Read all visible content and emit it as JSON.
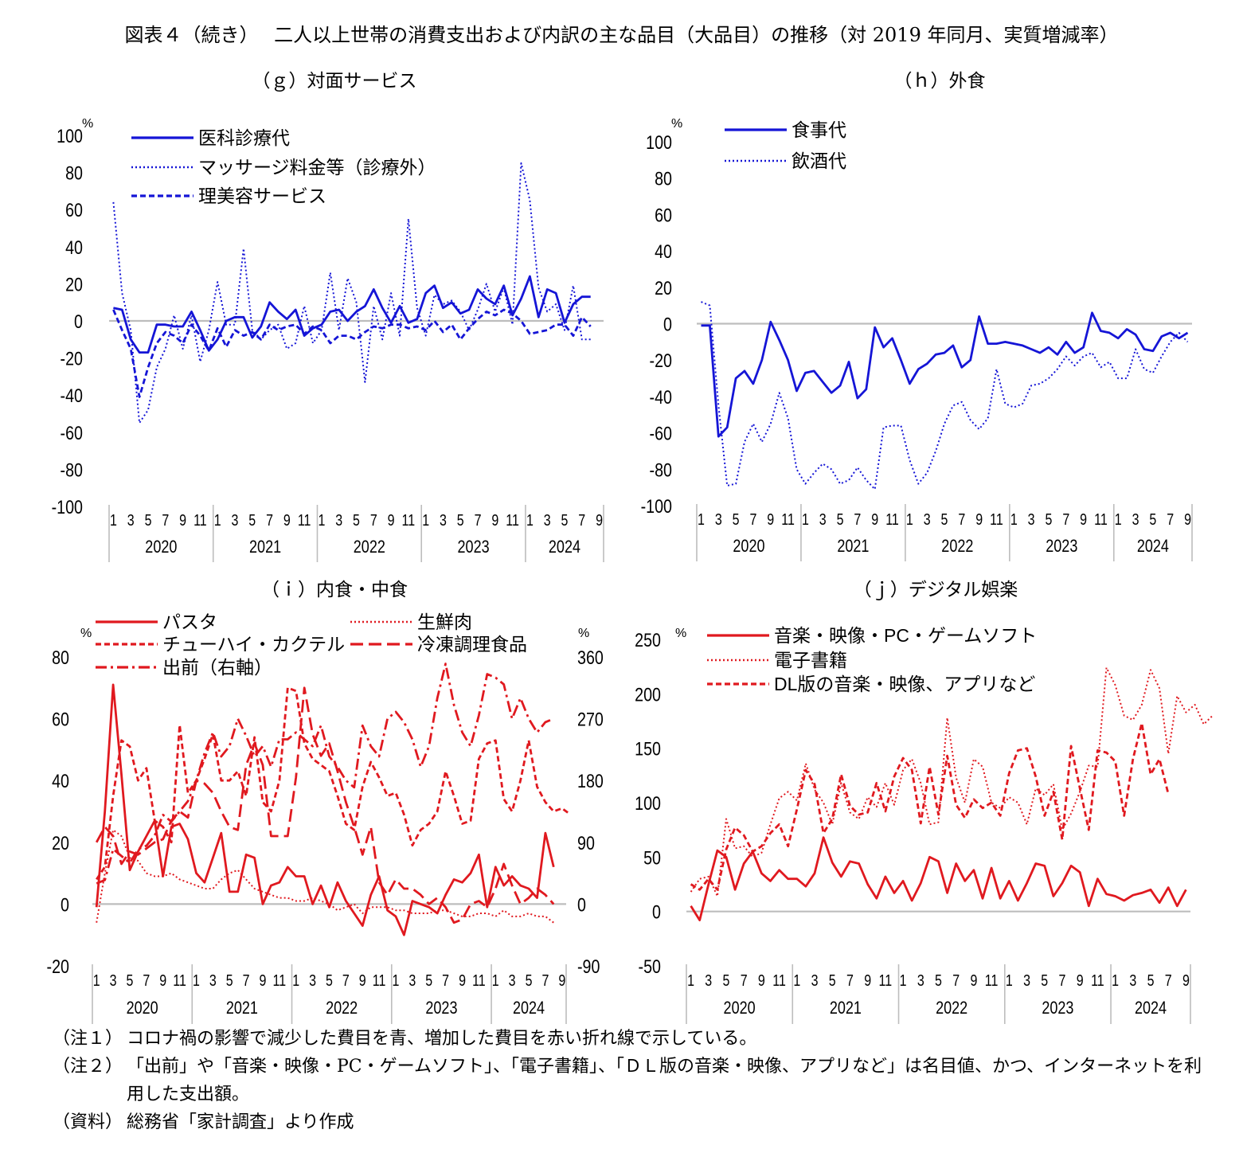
{
  "figure_title": "図表４（続き）　 二人以上世帯の消費支出および内訳の主な品目（大品目）の推移（対 2019 年同月、実質増減率）",
  "notes": [
    {
      "label": "（注１）",
      "text": "コロナ禍の影響で減少した費目を青、増加した費目を赤い折れ線で示している。"
    },
    {
      "label": "（注２）",
      "text": "「出前」や「音楽・映像・PC・ゲームソフト」、「電子書籍」、「ＤＬ版の音楽・映像、アプリなど」は名目値、かつ、インターネットを利用した支出額。"
    },
    {
      "label": "（資料）",
      "text": "総務省「家計調査」より作成"
    }
  ],
  "colors": {
    "blue": "#1515d6",
    "red": "#e0191f",
    "axis": "#bdbdbd"
  },
  "chart_data": [
    {
      "id": "g",
      "type": "line",
      "title": "（ｇ）対面サービス",
      "unit": "%",
      "ylim": [
        -100,
        100
      ],
      "y_ticks": [
        100,
        80,
        60,
        40,
        20,
        0,
        -20,
        -40,
        -60,
        -80,
        -100
      ],
      "x_tick_labels": [
        "1",
        "3",
        "5",
        "7",
        "9",
        "11",
        "1",
        "3",
        "5",
        "7",
        "9",
        "11",
        "1",
        "3",
        "5",
        "7",
        "9",
        "11",
        "1",
        "3",
        "5",
        "7",
        "9",
        "11",
        "1",
        "3",
        "5",
        "7",
        "9"
      ],
      "years": [
        "2020",
        "2021",
        "2022",
        "2023",
        "2024"
      ],
      "legend_placement": "top-left",
      "series": [
        {
          "name": "医科診療代",
          "color": "#1515d6",
          "dash": "solid",
          "values": [
            7,
            6,
            -10,
            -17,
            -17,
            -2,
            -2,
            -3,
            -3,
            5,
            -5,
            -16,
            -10,
            0,
            2,
            2,
            -9,
            -3,
            10,
            5,
            1,
            6,
            -8,
            -4,
            -2,
            5,
            6,
            0,
            5,
            8,
            17,
            7,
            -1,
            8,
            -1,
            1,
            15,
            19,
            7,
            10,
            4,
            6,
            17,
            12,
            9,
            19,
            3,
            12,
            24,
            2,
            17,
            15,
            -1,
            9,
            13,
            13
          ]
        },
        {
          "name": "マッサージ料金等（診療外）",
          "color": "#1515d6",
          "dash": "dotted",
          "values": [
            64,
            15,
            -5,
            -55,
            -48,
            -25,
            -15,
            3,
            -15,
            3,
            -22,
            -5,
            21,
            -2,
            -2,
            39,
            -5,
            -10,
            -5,
            -2,
            -15,
            -12,
            8,
            -12,
            -5,
            26,
            -5,
            23,
            10,
            -33,
            8,
            -10,
            15,
            -8,
            55,
            7,
            -8,
            14,
            9,
            11,
            5,
            -5,
            6,
            20,
            5,
            18,
            -2,
            85,
            65,
            18,
            5,
            9,
            -5,
            19,
            -10,
            -10
          ]
        },
        {
          "name": "理美容サービス",
          "color": "#1515d6",
          "dash": "dashed",
          "values": [
            6,
            -5,
            -15,
            -41,
            -25,
            -12,
            -6,
            -8,
            -12,
            -2,
            -8,
            -16,
            -4,
            -14,
            -5,
            -8,
            -6,
            -10,
            -2,
            -5,
            -3,
            -2,
            -7,
            -3,
            -5,
            -12,
            -8,
            -8,
            -10,
            -6,
            -3,
            -4,
            -2,
            -2,
            -4,
            -3,
            -5,
            0,
            -6,
            -2,
            -10,
            -4,
            1,
            5,
            3,
            6,
            4,
            0,
            -7,
            -6,
            -5,
            -2,
            -2,
            -8,
            2,
            -3
          ]
        }
      ]
    },
    {
      "id": "h",
      "type": "line",
      "title": "（ｈ）外食",
      "unit": "%",
      "ylim": [
        -100,
        100
      ],
      "y_ticks": [
        100,
        80,
        60,
        40,
        20,
        0,
        -20,
        -40,
        -60,
        -80,
        -100
      ],
      "x_tick_labels": [
        "1",
        "3",
        "5",
        "7",
        "9",
        "11",
        "1",
        "3",
        "5",
        "7",
        "9",
        "11",
        "1",
        "3",
        "5",
        "7",
        "9",
        "11",
        "1",
        "3",
        "5",
        "7",
        "9",
        "11",
        "1",
        "3",
        "5",
        "7",
        "9"
      ],
      "years": [
        "2020",
        "2021",
        "2022",
        "2023",
        "2024"
      ],
      "legend_placement": "top-left",
      "series": [
        {
          "name": "食事代",
          "color": "#1515d6",
          "dash": "solid",
          "values": [
            -1,
            -1,
            -62,
            -57,
            -30,
            -26,
            -33,
            -20,
            1,
            -9,
            -20,
            -37,
            -27,
            -26,
            -32,
            -38,
            -34,
            -21,
            -41,
            -36,
            -2,
            -13,
            -8,
            -20,
            -33,
            -25,
            -22,
            -17,
            -16,
            -12,
            -24,
            -20,
            4,
            -11,
            -11,
            -10,
            -11,
            -12,
            -14,
            -16,
            -13,
            -17,
            -10,
            -16,
            -13,
            6,
            -4,
            -5,
            -8,
            -3,
            -6,
            -14,
            -15,
            -7,
            -5,
            -8,
            -5
          ]
        },
        {
          "name": "飲酒代",
          "color": "#1515d6",
          "dash": "dotted",
          "values": [
            12,
            10,
            -45,
            -89,
            -88,
            -65,
            -55,
            -65,
            -55,
            -38,
            -52,
            -80,
            -88,
            -82,
            -77,
            -80,
            -88,
            -86,
            -79,
            -86,
            -91,
            -57,
            -56,
            -56,
            -75,
            -88,
            -82,
            -70,
            -55,
            -45,
            -43,
            -53,
            -58,
            -52,
            -25,
            -44,
            -46,
            -44,
            -34,
            -33,
            -30,
            -25,
            -18,
            -23,
            -18,
            -16,
            -24,
            -21,
            -30,
            -30,
            -14,
            -25,
            -27,
            -18,
            -10,
            -5,
            -10
          ]
        }
      ]
    },
    {
      "id": "i",
      "type": "line",
      "title": "（ｉ）内食・中食",
      "unit": "%",
      "ylim": [
        -20,
        80
      ],
      "y_ticks": [
        80,
        60,
        40,
        20,
        0,
        -20
      ],
      "y2lim": [
        -90,
        360
      ],
      "y2_ticks": [
        360,
        270,
        180,
        90,
        0,
        -90
      ],
      "x_tick_labels": [
        "1",
        "3",
        "5",
        "7",
        "9",
        "11",
        "1",
        "3",
        "5",
        "7",
        "9",
        "11",
        "1",
        "3",
        "5",
        "7",
        "9",
        "11",
        "1",
        "3",
        "5",
        "7",
        "9",
        "11",
        "1",
        "3",
        "5",
        "7",
        "9"
      ],
      "years": [
        "2020",
        "2021",
        "2022",
        "2023",
        "2024"
      ],
      "legend_placement": "top",
      "series": [
        {
          "name": "パスタ",
          "color": "#e0191f",
          "dash": "solid",
          "axis": "left",
          "values": [
            -1,
            30,
            71,
            42,
            11,
            17,
            22,
            27,
            9,
            25,
            26,
            21,
            10,
            7,
            15,
            23,
            4,
            4,
            16,
            15,
            0,
            6,
            7,
            12,
            9,
            9,
            0,
            6,
            -1,
            7,
            1,
            -3,
            -7,
            3,
            9,
            -2,
            -4,
            -10,
            1,
            0,
            -1,
            -3,
            3,
            8,
            7,
            10,
            16,
            -1,
            12,
            6,
            9,
            6,
            5,
            2,
            23,
            12
          ]
        },
        {
          "name": "生鮮肉",
          "color": "#e0191f",
          "dash": "dotted",
          "axis": "left",
          "values": [
            -6,
            10,
            24,
            22,
            15,
            14,
            10,
            9,
            9,
            10,
            8,
            7,
            6,
            5,
            5,
            8,
            10,
            11,
            8,
            5,
            4,
            3,
            2,
            2,
            1,
            1,
            2,
            1,
            0,
            -2,
            -1,
            0,
            -3,
            -1,
            -1,
            -1,
            -2,
            -2,
            -3,
            -3,
            -3,
            -2,
            -2,
            -3,
            -4,
            -4,
            -3,
            -3,
            -4,
            -2,
            -4,
            -4,
            -3,
            -4,
            -4,
            -6
          ]
        },
        {
          "name": "チューハイ・カクテル",
          "color": "#e0191f",
          "dash": "dashed",
          "axis": "left",
          "values": [
            8,
            12,
            35,
            53,
            51,
            40,
            44,
            27,
            25,
            20,
            58,
            36,
            40,
            47,
            55,
            40,
            40,
            43,
            35,
            54,
            33,
            30,
            40,
            70,
            69,
            52,
            47,
            45,
            43,
            35,
            26,
            24,
            38,
            46,
            41,
            35,
            36,
            29,
            19,
            24,
            26,
            30,
            43,
            35,
            26,
            27,
            47,
            52,
            53,
            34,
            30,
            40,
            53,
            38,
            33,
            30,
            31,
            29
          ]
        },
        {
          "name": "冷凍調理食品",
          "color": "#e0191f",
          "dash": "longdash",
          "axis": "left",
          "values": [
            20,
            25,
            22,
            13,
            17,
            16,
            18,
            20,
            21,
            27,
            30,
            28,
            40,
            39,
            36,
            30,
            25,
            24,
            45,
            52,
            45,
            22,
            22,
            22,
            41,
            70,
            55,
            48,
            52,
            43,
            33,
            25,
            16,
            25,
            7,
            3,
            8,
            5,
            5,
            3,
            0,
            2,
            -1,
            -6,
            -5,
            0,
            1,
            -1,
            5,
            13,
            6,
            0,
            2,
            5,
            3,
            0
          ]
        },
        {
          "name": "出前（右軸）",
          "color": "#e0191f",
          "dash": "dashdot",
          "axis": "right",
          "values": [
            30,
            35,
            80,
            70,
            60,
            80,
            85,
            100,
            130,
            120,
            135,
            150,
            180,
            220,
            250,
            215,
            230,
            270,
            245,
            215,
            230,
            200,
            240,
            240,
            250,
            240,
            230,
            260,
            215,
            200,
            180,
            170,
            260,
            230,
            215,
            270,
            280,
            265,
            240,
            200,
            230,
            300,
            350,
            290,
            250,
            230,
            275,
            335,
            330,
            320,
            270,
            300,
            270,
            250,
            265,
            270
          ]
        }
      ]
    },
    {
      "id": "j",
      "type": "line",
      "title": "（ｊ）デジタル娯楽",
      "unit": "%",
      "ylim": [
        -50,
        250
      ],
      "y_ticks": [
        250,
        200,
        150,
        100,
        50,
        0,
        -50
      ],
      "x_tick_labels": [
        "1",
        "3",
        "5",
        "7",
        "9",
        "11",
        "1",
        "3",
        "5",
        "7",
        "9",
        "11",
        "1",
        "3",
        "5",
        "7",
        "9",
        "11",
        "1",
        "3",
        "5",
        "7",
        "9",
        "11",
        "1",
        "3",
        "5",
        "7",
        "9"
      ],
      "years": [
        "2020",
        "2021",
        "2022",
        "2023",
        "2024"
      ],
      "legend_placement": "top",
      "series": [
        {
          "name": "音楽・映像・PC・ゲームソフト",
          "color": "#e0191f",
          "dash": "solid",
          "values": [
            5,
            -8,
            25,
            56,
            50,
            20,
            44,
            55,
            35,
            28,
            38,
            30,
            30,
            23,
            35,
            68,
            45,
            32,
            46,
            44,
            25,
            12,
            32,
            17,
            28,
            10,
            26,
            50,
            46,
            17,
            44,
            28,
            38,
            12,
            40,
            12,
            28,
            10,
            26,
            44,
            42,
            14,
            26,
            42,
            36,
            5,
            30,
            16,
            14,
            10,
            15,
            17,
            20,
            8,
            22,
            5,
            20
          ]
        },
        {
          "name": "電子書籍",
          "color": "#e0191f",
          "dash": "dotted",
          "values": [
            18,
            30,
            32,
            14,
            85,
            58,
            60,
            50,
            54,
            80,
            104,
            110,
            102,
            136,
            112,
            100,
            80,
            118,
            91,
            85,
            105,
            96,
            118,
            98,
            130,
            140,
            118,
            80,
            82,
            178,
            123,
            100,
            140,
            133,
            100,
            95,
            105,
            100,
            80,
            113,
            107,
            117,
            75,
            90,
            110,
            134,
            133,
            224,
            208,
            180,
            176,
            190,
            222,
            205,
            145,
            198,
            183,
            190,
            172,
            180
          ]
        },
        {
          "name": "DL版の音楽・映像、アプリなど",
          "color": "#e0191f",
          "dash": "dashed",
          "values": [
            25,
            20,
            30,
            20,
            57,
            77,
            70,
            55,
            60,
            72,
            80,
            60,
            94,
            130,
            117,
            72,
            85,
            126,
            97,
            89,
            91,
            118,
            92,
            124,
            141,
            130,
            81,
            133,
            89,
            143,
            98,
            86,
            103,
            95,
            100,
            88,
            127,
            148,
            150,
            124,
            88,
            110,
            66,
            152,
            113,
            75,
            148,
            146,
            138,
            88,
            140,
            173,
            126,
            140,
            108
          ]
        }
      ]
    }
  ]
}
